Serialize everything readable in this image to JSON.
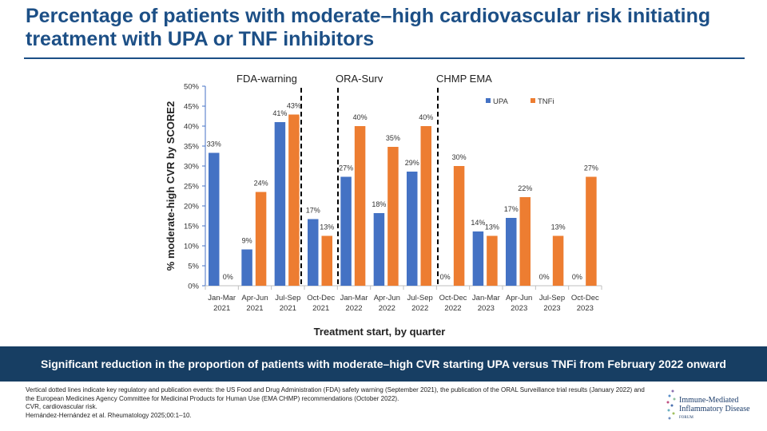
{
  "title": "Percentage of patients with moderate–high cardiovascular risk initiating treatment with UPA or TNF inhibitors",
  "banner": "Significant reduction in the proportion of patients with moderate–high CVR starting UPA versus TNFi from February 2022 onward",
  "footnotes": [
    "Vertical dotted lines indicate key regulatory and publication events: the US Food and Drug Administration (FDA) safety warning (September 2021), the publication of the ORAL Surveillance trial results (January 2022) and the European Medicines Agency Committee for Medicinal Products for Human Use (EMA CHMP) recommendations (October 2022).",
    "CVR, cardiovascular risk.",
    "Hernández-Hernández et al. Rheumatology 2025;00:1–10."
  ],
  "logo": {
    "line1": "Immune-Mediated",
    "line2": "Inflammatory Disease",
    "line3": "FORUM"
  },
  "chart_data": {
    "type": "bar",
    "xlabel": "Treatment start, by quarter",
    "ylabel": "% moderate-high CVR by SCORE2",
    "ylim": [
      0,
      50
    ],
    "yticks": [
      "0%",
      "5%",
      "10%",
      "15%",
      "20%",
      "25%",
      "30%",
      "35%",
      "40%",
      "45%",
      "50%"
    ],
    "categories": [
      [
        "Jan-Mar",
        "2021"
      ],
      [
        "Apr-Jun",
        "2021"
      ],
      [
        "Jul-Sep",
        "2021"
      ],
      [
        "Oct-Dec",
        "2021"
      ],
      [
        "Jan-Mar",
        "2022"
      ],
      [
        "Apr-Jun",
        "2022"
      ],
      [
        "Jul-Sep",
        "2022"
      ],
      [
        "Oct-Dec",
        "2022"
      ],
      [
        "Jan-Mar",
        "2023"
      ],
      [
        "Apr-Jun",
        "2023"
      ],
      [
        "Jul-Sep",
        "2023"
      ],
      [
        "Oct-Dec",
        "2023"
      ]
    ],
    "legend_position": "top-right",
    "series": [
      {
        "name": "UPA",
        "color": "#4472c4",
        "values": [
          33.3,
          9.1,
          41.0,
          16.7,
          27.3,
          18.2,
          28.6,
          0,
          13.6,
          17.0,
          0,
          0
        ],
        "labels": [
          "33%",
          "9%",
          "41%",
          "17%",
          "27%",
          "18%",
          "29%",
          "0%",
          "14%",
          "17%",
          "0%",
          "0%"
        ]
      },
      {
        "name": "TNFi",
        "color": "#ed7d31",
        "values": [
          0,
          23.5,
          42.9,
          12.5,
          40.0,
          34.8,
          40.0,
          30.0,
          12.5,
          22.2,
          12.5,
          27.3
        ],
        "labels": [
          "0%",
          "24%",
          "43%",
          "13%",
          "40%",
          "35%",
          "40%",
          "30%",
          "13%",
          "22%",
          "13%",
          "27%"
        ]
      }
    ],
    "events": [
      {
        "label": "FDA-warning",
        "after_category": 2
      },
      {
        "label": "ORA-Surv",
        "after_category": 3
      },
      {
        "label": "CHMP EMA",
        "after_category": 6
      }
    ]
  }
}
